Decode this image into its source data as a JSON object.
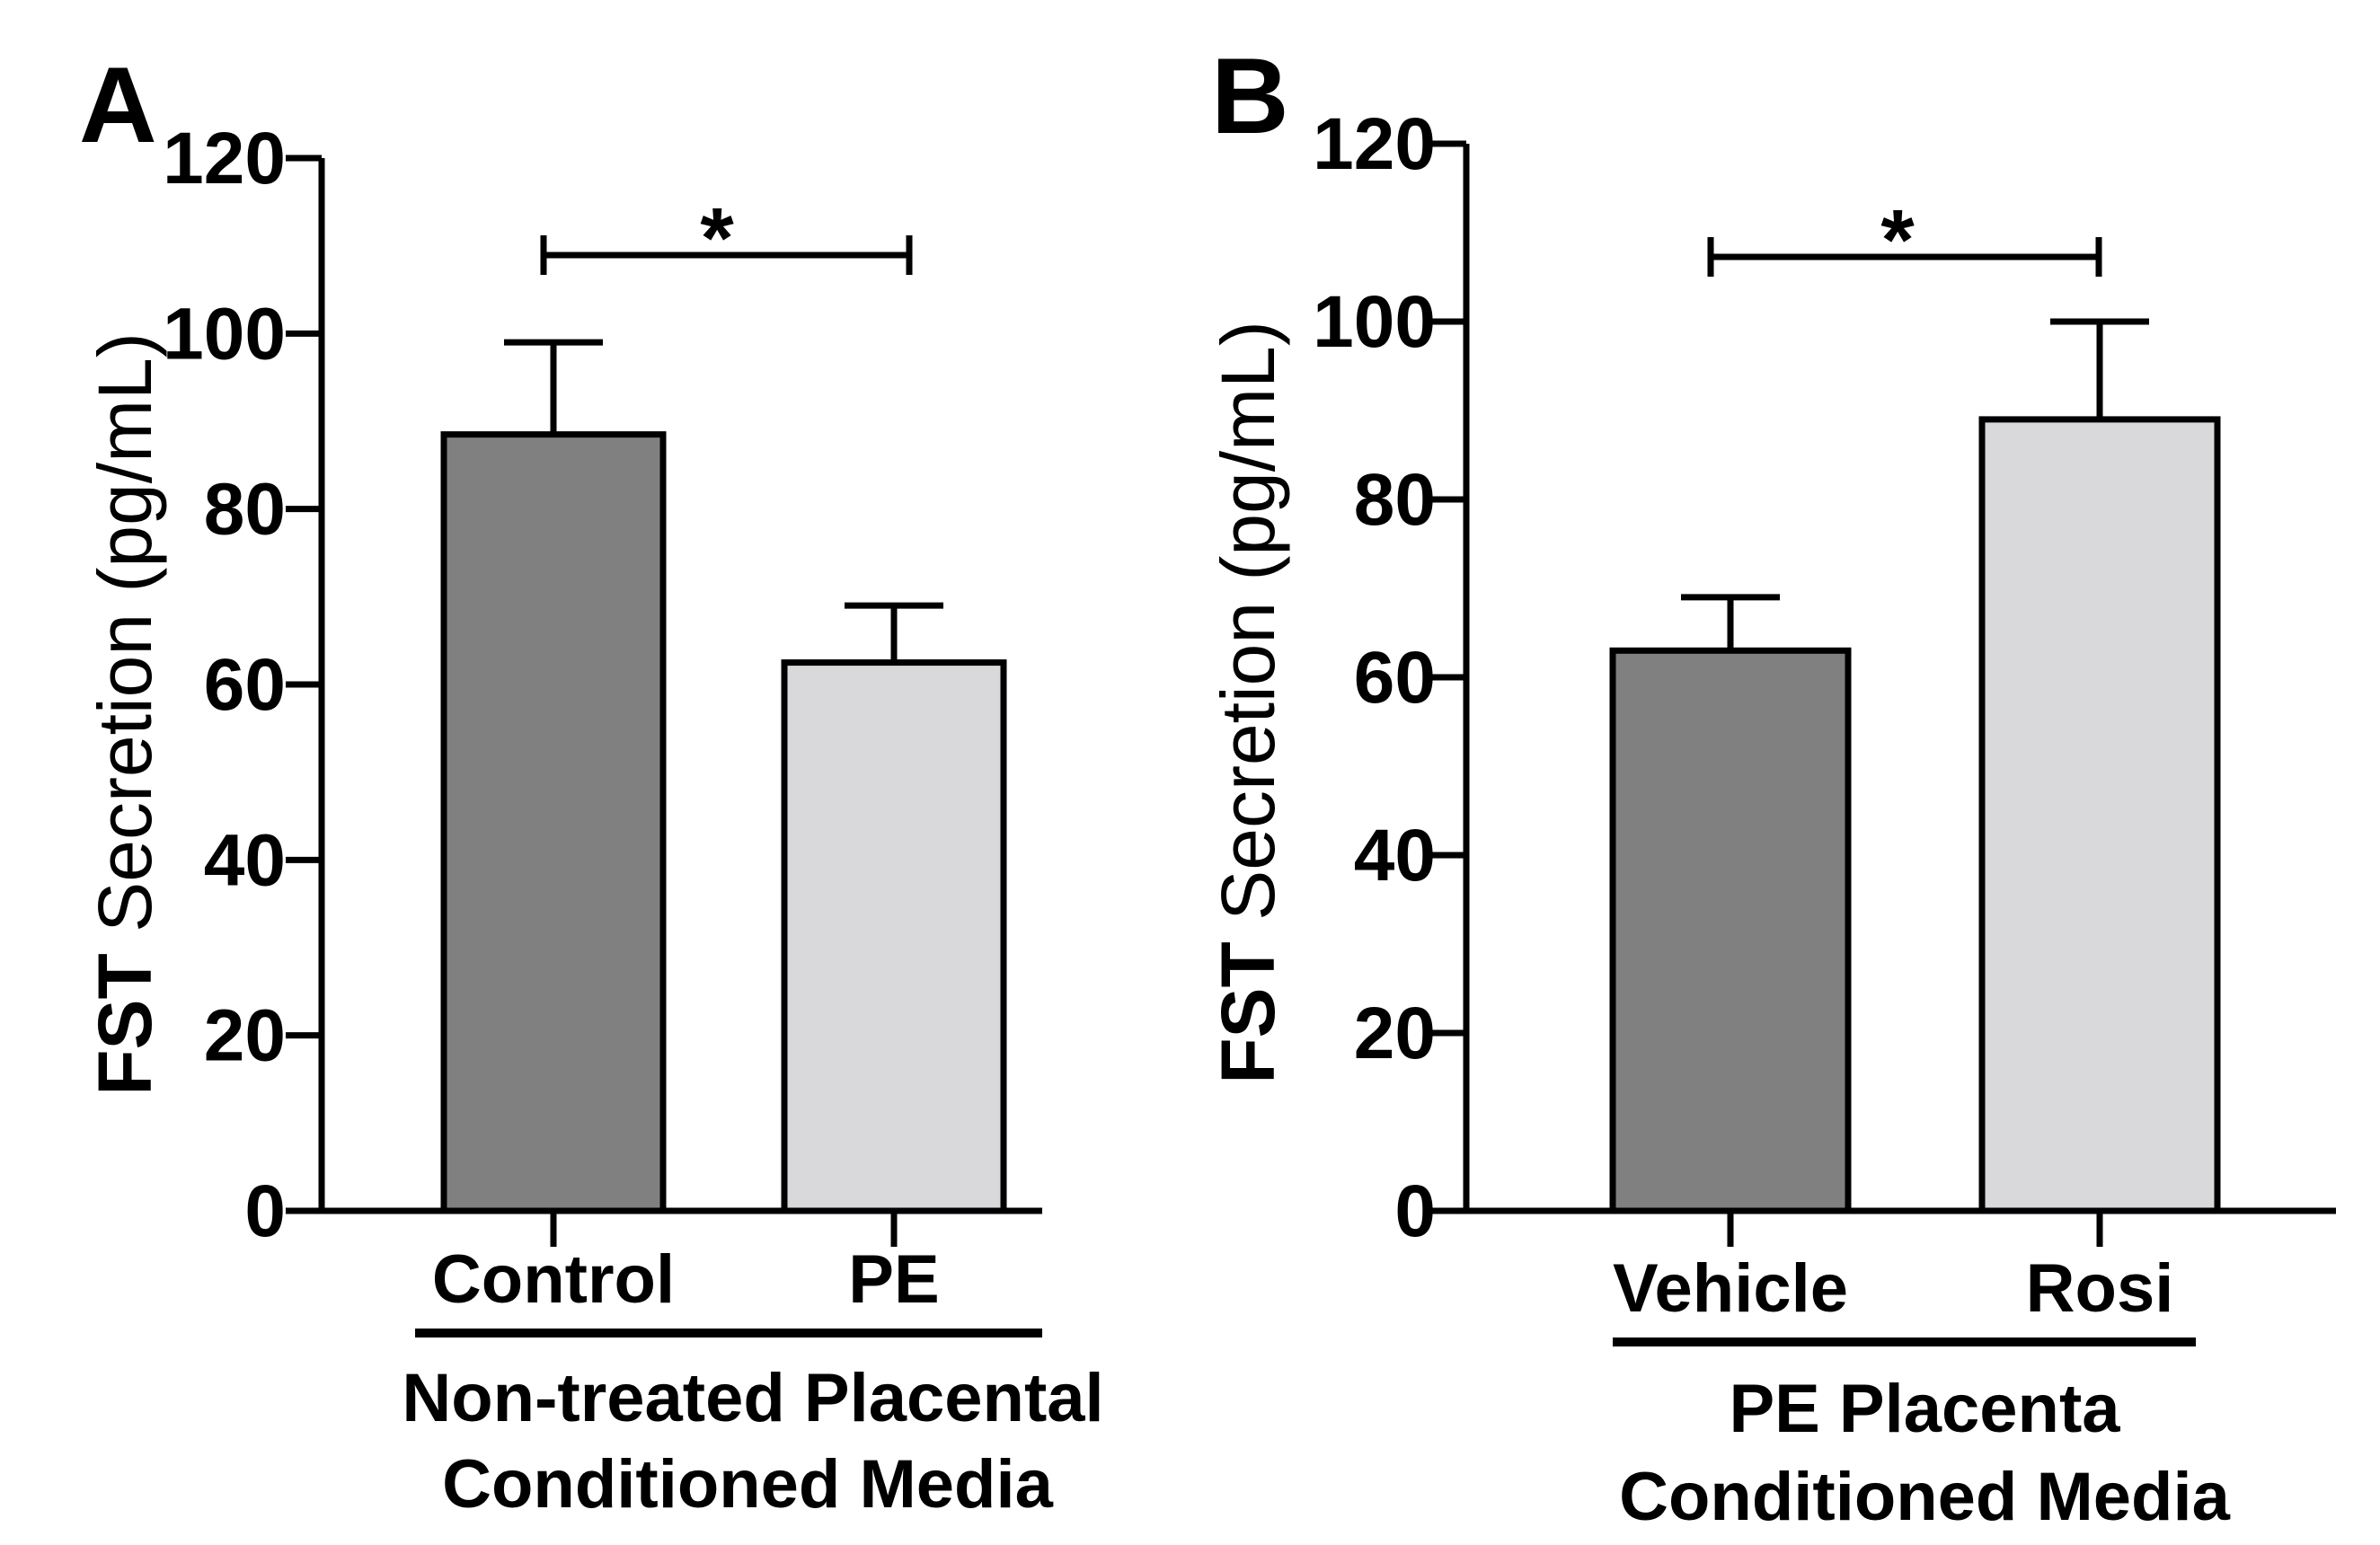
{
  "chart_data": [
    {
      "type": "bar",
      "panel_label": "A",
      "ylabel_bold": "FST",
      "ylabel_rest": " Secretion (pg/mL)",
      "ylim": [
        0,
        120
      ],
      "yticks": [
        0,
        20,
        40,
        60,
        80,
        100,
        120
      ],
      "ytick_labels": [
        "0",
        "20",
        "40",
        "60",
        "80",
        "100",
        "120"
      ],
      "categories": [
        "Control",
        "PE"
      ],
      "values": [
        88.5,
        62.5
      ],
      "errors": [
        10.5,
        6.5
      ],
      "colors": [
        "#808080",
        "#d9d9db"
      ],
      "group_label_line1": "Non-treated Placental",
      "group_label_line2": "Conditioned Media",
      "significance": "*"
    },
    {
      "type": "bar",
      "panel_label": "B",
      "ylabel_bold": "FST",
      "ylabel_rest": " Secretion (pg/mL)",
      "ylim": [
        0,
        120
      ],
      "yticks": [
        0,
        20,
        40,
        60,
        80,
        100,
        120
      ],
      "ytick_labels": [
        "0",
        "20",
        "40",
        "60",
        "80",
        "100",
        "120"
      ],
      "categories": [
        "Vehicle",
        "Rosi"
      ],
      "values": [
        63,
        89
      ],
      "errors": [
        6,
        11
      ],
      "colors": [
        "#808080",
        "#d9d9db"
      ],
      "group_label_line1": "PE Placenta",
      "group_label_line2": "Conditioned Media",
      "significance": "*"
    }
  ]
}
